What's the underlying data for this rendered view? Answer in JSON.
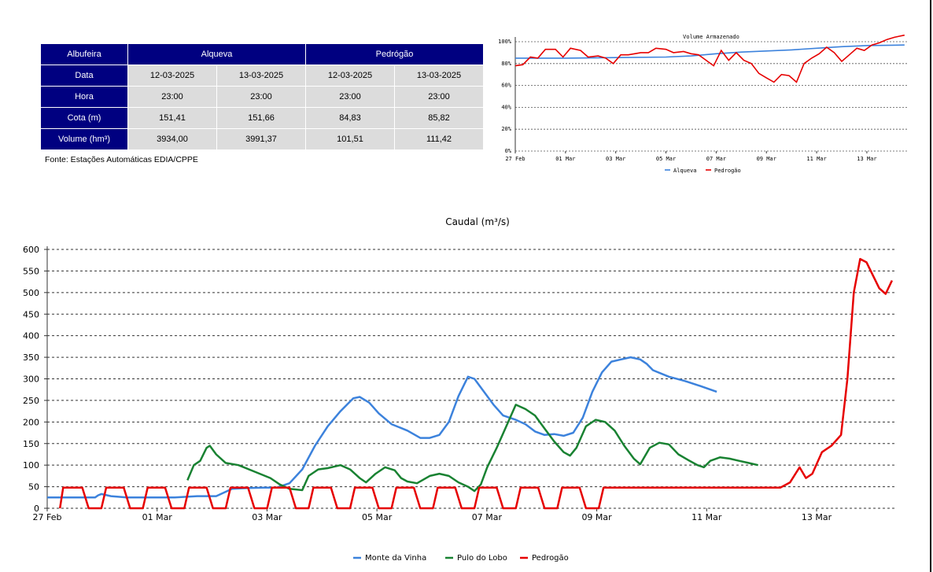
{
  "table": {
    "col_albufeira": "Albufeira",
    "res1": "Alqueva",
    "res2": "Pedrógão",
    "rows": [
      {
        "label": "Data",
        "v": [
          "12-03-2025",
          "13-03-2025",
          "12-03-2025",
          "13-03-2025"
        ]
      },
      {
        "label": "Hora",
        "v": [
          "23:00",
          "23:00",
          "23:00",
          "23:00"
        ]
      },
      {
        "label": "Cota (m)",
        "v": [
          "151,41",
          "151,66",
          "84,83",
          "85,82"
        ]
      },
      {
        "label": "Volume (hm³)",
        "v": [
          "3934,00",
          "3991,37",
          "101,51",
          "111,42"
        ]
      }
    ],
    "source": "Fonte: Estações Automáticas EDIA/CPPE"
  },
  "colors": {
    "header_bg": "#000080",
    "cell_bg": "#dcdcdc",
    "blue": "#3c82dc",
    "green": "#198232",
    "red": "#e60000"
  },
  "chart_data": [
    {
      "type": "line",
      "title": "Volume Armazenado",
      "x_ticks": [
        "27 Feb",
        "01 Mar",
        "03 Mar",
        "05 Mar",
        "07 Mar",
        "09 Mar",
        "11 Mar",
        "13 Mar"
      ],
      "y_ticks": [
        "0%",
        "20%",
        "40%",
        "60%",
        "80%",
        "100%"
      ],
      "ylim": [
        0,
        100
      ],
      "grid": true,
      "legend": "bottom",
      "x_day_range": [
        0,
        15.6
      ],
      "series": [
        {
          "name": "Alqueva",
          "color": "#3c82dc",
          "points": [
            [
              0,
              85
            ],
            [
              2,
              85
            ],
            [
              4,
              85.5
            ],
            [
              6,
              86
            ],
            [
              7,
              87
            ],
            [
              8,
              89
            ],
            [
              9,
              90.5
            ],
            [
              10,
              91.5
            ],
            [
              11,
              92.5
            ],
            [
              12,
              94
            ],
            [
              13,
              95.5
            ],
            [
              14,
              96.5
            ],
            [
              15.5,
              97
            ]
          ]
        },
        {
          "name": "Pedrogão",
          "color": "#e60000",
          "points": [
            [
              0,
              78
            ],
            [
              0.3,
              79
            ],
            [
              0.6,
              86
            ],
            [
              0.9,
              85
            ],
            [
              1.2,
              93
            ],
            [
              1.6,
              93
            ],
            [
              1.9,
              86
            ],
            [
              2.2,
              94
            ],
            [
              2.6,
              92
            ],
            [
              2.9,
              86
            ],
            [
              3.3,
              87
            ],
            [
              3.6,
              85
            ],
            [
              3.9,
              80
            ],
            [
              4.2,
              88
            ],
            [
              4.5,
              88
            ],
            [
              5,
              90
            ],
            [
              5.3,
              90
            ],
            [
              5.6,
              94
            ],
            [
              6,
              93
            ],
            [
              6.3,
              90
            ],
            [
              6.7,
              91
            ],
            [
              7,
              89
            ],
            [
              7.3,
              88
            ],
            [
              7.6,
              83
            ],
            [
              7.9,
              78
            ],
            [
              8.2,
              92
            ],
            [
              8.5,
              83
            ],
            [
              8.8,
              90
            ],
            [
              9.1,
              83
            ],
            [
              9.4,
              80
            ],
            [
              9.7,
              71
            ],
            [
              10,
              67
            ],
            [
              10.3,
              63
            ],
            [
              10.6,
              70
            ],
            [
              10.9,
              69
            ],
            [
              11.2,
              63
            ],
            [
              11.5,
              80
            ],
            [
              11.8,
              85
            ],
            [
              12.1,
              89
            ],
            [
              12.4,
              95
            ],
            [
              12.7,
              90
            ],
            [
              13,
              82
            ],
            [
              13.3,
              88
            ],
            [
              13.6,
              94
            ],
            [
              13.9,
              92
            ],
            [
              14.2,
              97
            ],
            [
              14.5,
              99
            ],
            [
              14.8,
              102
            ],
            [
              15.1,
              104
            ],
            [
              15.3,
              105
            ],
            [
              15.5,
              106
            ]
          ]
        }
      ]
    },
    {
      "type": "line",
      "title": "Caudal (m³/s)",
      "x_ticks": [
        "27 Feb",
        "01 Mar",
        "03 Mar",
        "05 Mar",
        "07 Mar",
        "09 Mar",
        "11 Mar",
        "13 Mar"
      ],
      "y_ticks": [
        "0",
        "50",
        "100",
        "150",
        "200",
        "250",
        "300",
        "350",
        "400",
        "450",
        "500",
        "550",
        "600"
      ],
      "ylim": [
        0,
        600
      ],
      "grid": true,
      "legend": "bottom",
      "x_day_range": [
        0,
        15.4
      ],
      "series": [
        {
          "name": "Monte da Vinha",
          "color": "#3c82dc",
          "points": [
            [
              0,
              25
            ],
            [
              1.5,
              25
            ],
            [
              1.6,
              30
            ],
            [
              1.7,
              33
            ],
            [
              2,
              28
            ],
            [
              2.5,
              25
            ],
            [
              3,
              25
            ],
            [
              4,
              25
            ],
            [
              4.7,
              28
            ],
            [
              5.3,
              28
            ],
            [
              5.8,
              45
            ],
            [
              6.3,
              47
            ],
            [
              6.8,
              48
            ],
            [
              7.2,
              48
            ],
            [
              7.6,
              58
            ],
            [
              8,
              90
            ],
            [
              8.4,
              145
            ],
            [
              8.8,
              190
            ],
            [
              9.2,
              225
            ],
            [
              9.6,
              255
            ],
            [
              9.8,
              258
            ],
            [
              10.1,
              245
            ],
            [
              10.4,
              220
            ],
            [
              10.8,
              195
            ],
            [
              11.3,
              180
            ],
            [
              11.7,
              163
            ],
            [
              12,
              163
            ],
            [
              12.3,
              170
            ],
            [
              12.6,
              200
            ],
            [
              12.9,
              260
            ],
            [
              13.2,
              305
            ],
            [
              13.4,
              300
            ],
            [
              13.7,
              270
            ],
            [
              14,
              240
            ],
            [
              14.3,
              215
            ],
            [
              14.7,
              205
            ],
            [
              15,
              195
            ],
            [
              15.3,
              178
            ],
            [
              15.6,
              170
            ],
            [
              15.9,
              172
            ],
            [
              16.2,
              168
            ],
            [
              16.5,
              175
            ],
            [
              16.8,
              210
            ],
            [
              17.1,
              270
            ],
            [
              17.4,
              315
            ],
            [
              17.7,
              340
            ],
            [
              18,
              345
            ],
            [
              18.3,
              350
            ],
            [
              18.6,
              345
            ],
            [
              18.8,
              335
            ],
            [
              19,
              320
            ],
            [
              19.5,
              305
            ],
            [
              20,
              295
            ],
            [
              20.5,
              283
            ],
            [
              21,
              270
            ]
          ]
        },
        {
          "name": "Pulo do Lobo",
          "color": "#198232",
          "points": [
            [
              4.4,
              65
            ],
            [
              4.6,
              100
            ],
            [
              4.8,
              110
            ],
            [
              5,
              140
            ],
            [
              5.1,
              145
            ],
            [
              5.3,
              125
            ],
            [
              5.6,
              105
            ],
            [
              6,
              100
            ],
            [
              6.5,
              85
            ],
            [
              7,
              70
            ],
            [
              7.3,
              55
            ],
            [
              7.6,
              45
            ],
            [
              8,
              42
            ],
            [
              8.2,
              75
            ],
            [
              8.5,
              90
            ],
            [
              8.8,
              93
            ],
            [
              9.2,
              100
            ],
            [
              9.5,
              90
            ],
            [
              9.8,
              70
            ],
            [
              10,
              60
            ],
            [
              10.3,
              80
            ],
            [
              10.6,
              95
            ],
            [
              10.9,
              88
            ],
            [
              11.1,
              70
            ],
            [
              11.3,
              62
            ],
            [
              11.6,
              58
            ],
            [
              12,
              75
            ],
            [
              12.3,
              80
            ],
            [
              12.6,
              75
            ],
            [
              12.9,
              60
            ],
            [
              13.2,
              50
            ],
            [
              13.4,
              40
            ],
            [
              13.6,
              55
            ],
            [
              13.8,
              95
            ],
            [
              14.1,
              140
            ],
            [
              14.4,
              190
            ],
            [
              14.7,
              240
            ],
            [
              15,
              230
            ],
            [
              15.3,
              215
            ],
            [
              15.6,
              185
            ],
            [
              15.9,
              155
            ],
            [
              16.2,
              130
            ],
            [
              16.4,
              122
            ],
            [
              16.6,
              140
            ],
            [
              16.9,
              190
            ],
            [
              17.2,
              205
            ],
            [
              17.5,
              200
            ],
            [
              17.8,
              180
            ],
            [
              18.1,
              145
            ],
            [
              18.4,
              115
            ],
            [
              18.6,
              102
            ],
            [
              18.9,
              140
            ],
            [
              19.2,
              152
            ],
            [
              19.5,
              148
            ],
            [
              19.8,
              125
            ],
            [
              20.1,
              112
            ],
            [
              20.4,
              100
            ],
            [
              20.6,
              95
            ],
            [
              20.8,
              110
            ],
            [
              21.1,
              118
            ],
            [
              21.4,
              115
            ],
            [
              21.7,
              110
            ],
            [
              22,
              105
            ],
            [
              22.3,
              100
            ]
          ]
        },
        {
          "name": "Pedrogão",
          "color": "#e60000",
          "points": [
            [
              0.4,
              0
            ],
            [
              0.5,
              48
            ],
            [
              1.1,
              48
            ],
            [
              1.3,
              0
            ],
            [
              1.7,
              0
            ],
            [
              1.85,
              48
            ],
            [
              2.4,
              48
            ],
            [
              2.6,
              0
            ],
            [
              3,
              0
            ],
            [
              3.15,
              48
            ],
            [
              3.7,
              48
            ],
            [
              3.9,
              0
            ],
            [
              4.3,
              0
            ],
            [
              4.45,
              48
            ],
            [
              5,
              48
            ],
            [
              5.2,
              0
            ],
            [
              5.6,
              0
            ],
            [
              5.75,
              48
            ],
            [
              6.3,
              48
            ],
            [
              6.5,
              0
            ],
            [
              6.9,
              0
            ],
            [
              7.05,
              48
            ],
            [
              7.6,
              48
            ],
            [
              7.8,
              0
            ],
            [
              8.2,
              0
            ],
            [
              8.35,
              48
            ],
            [
              8.9,
              48
            ],
            [
              9.1,
              0
            ],
            [
              9.5,
              0
            ],
            [
              9.65,
              48
            ],
            [
              10.2,
              48
            ],
            [
              10.4,
              0
            ],
            [
              10.8,
              0
            ],
            [
              10.95,
              48
            ],
            [
              11.5,
              48
            ],
            [
              11.7,
              0
            ],
            [
              12.1,
              0
            ],
            [
              12.25,
              48
            ],
            [
              12.8,
              48
            ],
            [
              13,
              0
            ],
            [
              13.4,
              0
            ],
            [
              13.55,
              48
            ],
            [
              14.1,
              48
            ],
            [
              14.3,
              0
            ],
            [
              14.7,
              0
            ],
            [
              14.85,
              48
            ],
            [
              15.4,
              48
            ],
            [
              15.6,
              0
            ],
            [
              16,
              0
            ],
            [
              16.15,
              48
            ],
            [
              16.7,
              48
            ],
            [
              16.9,
              0
            ],
            [
              17.3,
              0
            ],
            [
              17.45,
              48
            ],
            [
              23,
              48
            ],
            [
              23.3,
              60
            ],
            [
              23.6,
              95
            ],
            [
              23.8,
              70
            ],
            [
              24,
              80
            ],
            [
              24.3,
              130
            ],
            [
              24.6,
              145
            ],
            [
              24.9,
              170
            ],
            [
              25.1,
              300
            ],
            [
              25.3,
              500
            ],
            [
              25.5,
              578
            ],
            [
              25.7,
              570
            ],
            [
              25.9,
              540
            ],
            [
              26.1,
              510
            ],
            [
              26.3,
              497
            ],
            [
              26.5,
              528
            ]
          ]
        }
      ]
    }
  ]
}
